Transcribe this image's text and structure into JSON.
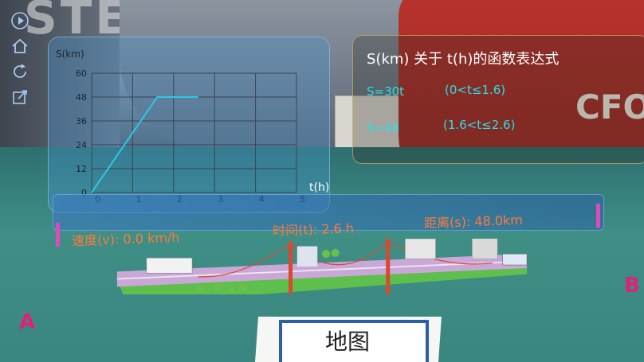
{
  "chart_data": {
    "type": "line",
    "title": "",
    "ylabel": "S(km)",
    "xlabel": "t(h)",
    "x_ticks": [
      "0",
      "1",
      "2",
      "3",
      "4",
      "5"
    ],
    "y_ticks": [
      "0",
      "12",
      "24",
      "36",
      "48",
      "60"
    ],
    "xlim": [
      0,
      5
    ],
    "ylim": [
      0,
      60
    ],
    "grid": true,
    "series": [
      {
        "x": [
          0,
          1.6,
          2.6
        ],
        "y": [
          0,
          48,
          48
        ]
      }
    ],
    "color": "#2ec6e6"
  },
  "formula_panel": {
    "title": "S(km) 关于 t(h)的函数表达式",
    "lines": [
      {
        "expr": "S=30t",
        "cond": "(0<t≤1.6)"
      },
      {
        "expr": "S=48",
        "cond": "(1.6<t≤2.6)"
      }
    ]
  },
  "status": {
    "speed": "速度(v): 0.0 km/h",
    "time": "时间(t): 2.6 h",
    "distance": "距离(s): 48.0km"
  },
  "scene": {
    "point_a": "A",
    "point_b": "B",
    "map_card": "地图",
    "bg_letters": "STER",
    "shirt_text": "CFO"
  },
  "toolbar": {
    "icons": [
      "play-icon",
      "home-icon",
      "refresh-icon",
      "resize-icon"
    ]
  }
}
